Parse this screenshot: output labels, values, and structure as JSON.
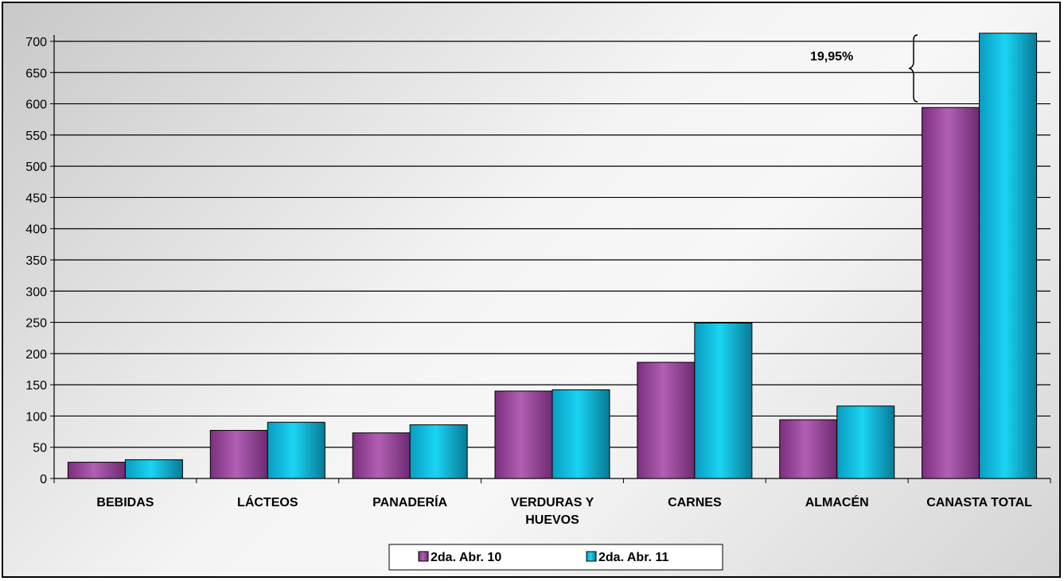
{
  "chart_data": {
    "type": "bar",
    "categories": [
      "BEBIDAS",
      "LÁCTEOS",
      "PANADERÍA",
      "VERDURAS Y HUEVOS",
      "CARNES",
      "ALMACÉN",
      "CANASTA TOTAL"
    ],
    "category_lines": [
      [
        "BEBIDAS"
      ],
      [
        "LÁCTEOS"
      ],
      [
        "PANADERÍA"
      ],
      [
        "VERDURAS Y",
        "HUEVOS"
      ],
      [
        "CARNES"
      ],
      [
        "ALMACÉN"
      ],
      [
        "CANASTA TOTAL"
      ]
    ],
    "series": [
      {
        "name": "2da. Abr. 10",
        "color": "#a04aa2",
        "values": [
          26,
          77,
          73,
          140,
          186,
          94,
          594
        ]
      },
      {
        "name": "2da. Abr. 11",
        "color": "#0ec8ea",
        "values": [
          30,
          90,
          86,
          142,
          249,
          116,
          713
        ]
      }
    ],
    "ylim": [
      0,
      700
    ],
    "yticks": [
      0,
      50,
      100,
      150,
      200,
      250,
      300,
      350,
      400,
      450,
      500,
      550,
      600,
      650,
      700
    ],
    "grid": true,
    "legend_position": "bottom",
    "annotation": {
      "text": "19,95%"
    }
  }
}
